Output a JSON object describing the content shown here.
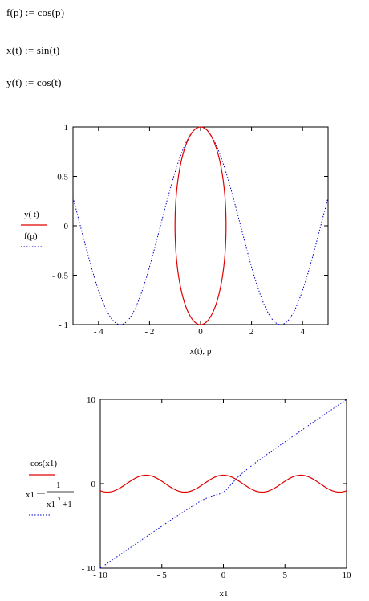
{
  "definitions": {
    "f": "f(p) := cos(p)",
    "x": "x(t) := sin(t)",
    "y": "y(t) := cos(t)"
  },
  "chart_data": [
    {
      "type": "line",
      "xlim": [
        -5,
        5
      ],
      "ylim": [
        -1,
        1
      ],
      "x_ticks": [
        "- 4",
        "- 2",
        "0",
        "2",
        "4"
      ],
      "x_tick_values": [
        -4,
        -2,
        0,
        2,
        4
      ],
      "y_ticks": [
        "1",
        "0.5",
        "0",
        "- 0.5",
        "- 1"
      ],
      "y_tick_values": [
        1,
        0.5,
        0,
        -0.5,
        -1
      ],
      "xlabel": "x(t), p",
      "legend": [
        {
          "label": "y( t)",
          "color": "#e00000",
          "style": "solid"
        },
        {
          "label": "f(p)",
          "color": "#0000cc",
          "style": "dotted"
        }
      ],
      "series": [
        {
          "name": "y(t) vs x(t)",
          "parametric": "x=sin(t), y=cos(t)",
          "color": "#e00000",
          "style": "solid"
        },
        {
          "name": "f(p)",
          "function": "cos(p)",
          "color": "#0000cc",
          "style": "dotted"
        }
      ]
    },
    {
      "type": "line",
      "xlim": [
        -10,
        10
      ],
      "ylim": [
        -10,
        10
      ],
      "x_ticks": [
        "- 10",
        "- 5",
        "0",
        "5",
        "10"
      ],
      "x_tick_values": [
        -10,
        -5,
        0,
        5,
        10
      ],
      "y_ticks": [
        "10",
        "0",
        "- 10"
      ],
      "y_tick_values": [
        10,
        0,
        -10
      ],
      "xlabel": "x1",
      "legend": [
        {
          "label": "cos(x1)",
          "color": "#e00000",
          "style": "solid"
        },
        {
          "label": "x1 - 1 / (x1^2 + 1)",
          "color": "#0000cc",
          "style": "dotted"
        }
      ],
      "series": [
        {
          "name": "cos(x1)",
          "function": "cos(x)",
          "color": "#e00000",
          "style": "solid"
        },
        {
          "name": "x1-1/(x1^2+1)",
          "function": "x - 1/(x^2+1)",
          "color": "#0000cc",
          "style": "dotted"
        }
      ]
    }
  ]
}
